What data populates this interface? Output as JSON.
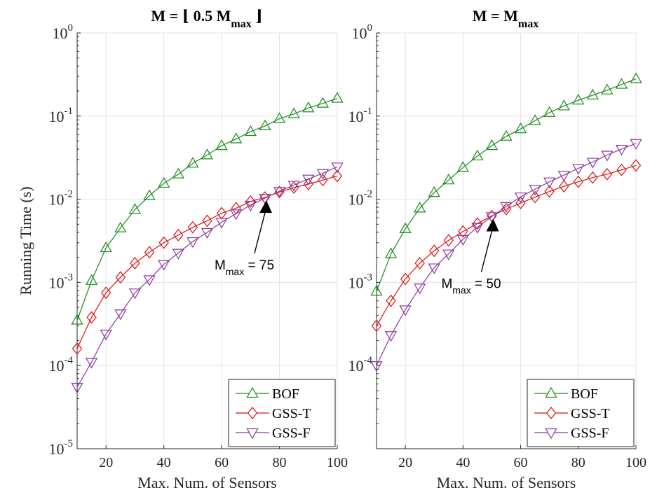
{
  "chart_data": [
    {
      "type": "line",
      "title_main": "M = ⌊ 0.5 M",
      "title_sub": "max",
      "title_end": " ⌋",
      "xlabel": "Max. Num. of Sensors",
      "ylabel": "Running Time (s)",
      "yscale": "log",
      "xlim": [
        10,
        100
      ],
      "ylim": [
        1e-05,
        1
      ],
      "xticks": [
        20,
        40,
        60,
        80,
        100
      ],
      "yticks": [
        {
          "base": "10",
          "exp": "0"
        },
        {
          "base": "10",
          "exp": "-1"
        },
        {
          "base": "10",
          "exp": "-2"
        },
        {
          "base": "10",
          "exp": "-3"
        },
        {
          "base": "10",
          "exp": "-4"
        },
        {
          "base": "10",
          "exp": "-5"
        }
      ],
      "grid": true,
      "legend_position": "bottom-right",
      "x": [
        10,
        15,
        20,
        25,
        30,
        35,
        40,
        45,
        50,
        55,
        60,
        65,
        70,
        75,
        80,
        85,
        90,
        95,
        100
      ],
      "series": [
        {
          "name": "BOF",
          "color": "#1a8a1a",
          "marker": "triangle-up",
          "values": [
            0.00035,
            0.00105,
            0.0026,
            0.0045,
            0.0075,
            0.011,
            0.0155,
            0.02,
            0.027,
            0.034,
            0.044,
            0.053,
            0.065,
            0.076,
            0.093,
            0.106,
            0.125,
            0.142,
            0.163
          ]
        },
        {
          "name": "GSS-T",
          "color": "#e01010",
          "marker": "diamond",
          "values": [
            0.00016,
            0.00038,
            0.00075,
            0.00115,
            0.0017,
            0.0023,
            0.003,
            0.0037,
            0.0046,
            0.0055,
            0.0068,
            0.0078,
            0.0094,
            0.0105,
            0.0122,
            0.0138,
            0.0152,
            0.017,
            0.019
          ]
        },
        {
          "name": "GSS-F",
          "color": "#8a3aa0",
          "marker": "triangle-down",
          "values": [
            5.5e-05,
            0.00011,
            0.00024,
            0.00042,
            0.00075,
            0.00108,
            0.00165,
            0.00225,
            0.0031,
            0.004,
            0.0053,
            0.0067,
            0.0085,
            0.0103,
            0.0125,
            0.0148,
            0.0175,
            0.0205,
            0.0245
          ]
        }
      ],
      "annotation": {
        "label_base": "M",
        "label_sub": "max",
        "label_rest": " = 75",
        "x": 75,
        "y": 0.0105
      }
    },
    {
      "type": "line",
      "title_main": "M = M",
      "title_sub": "max",
      "title_end": "",
      "xlabel": "Max. Num. of Sensors",
      "ylabel": "",
      "yscale": "log",
      "xlim": [
        10,
        100
      ],
      "ylim": [
        1e-05,
        1
      ],
      "xticks": [
        20,
        40,
        60,
        80,
        100
      ],
      "yticks": [
        {
          "base": "10",
          "exp": "0"
        },
        {
          "base": "10",
          "exp": "-1"
        },
        {
          "base": "10",
          "exp": "-2"
        },
        {
          "base": "10",
          "exp": "-3"
        },
        {
          "base": "10",
          "exp": "-4"
        }
      ],
      "grid": true,
      "legend_position": "bottom-right",
      "x": [
        10,
        15,
        20,
        25,
        30,
        35,
        40,
        45,
        50,
        55,
        60,
        65,
        70,
        75,
        80,
        85,
        90,
        95,
        100
      ],
      "series": [
        {
          "name": "BOF",
          "color": "#1a8a1a",
          "marker": "triangle-up",
          "values": [
            0.00078,
            0.0022,
            0.0044,
            0.0078,
            0.012,
            0.017,
            0.024,
            0.033,
            0.044,
            0.057,
            0.07,
            0.088,
            0.11,
            0.132,
            0.155,
            0.178,
            0.205,
            0.24,
            0.28
          ]
        },
        {
          "name": "GSS-T",
          "color": "#e01010",
          "marker": "diamond",
          "values": [
            0.0003,
            0.0006,
            0.0011,
            0.0017,
            0.0024,
            0.0032,
            0.0041,
            0.0051,
            0.0063,
            0.0076,
            0.009,
            0.0106,
            0.0124,
            0.0143,
            0.0162,
            0.0182,
            0.02,
            0.0225,
            0.0255
          ]
        },
        {
          "name": "GSS-F",
          "color": "#8a3aa0",
          "marker": "triangle-down",
          "values": [
            0.0001,
            0.00023,
            0.00047,
            0.00086,
            0.0015,
            0.0022,
            0.0033,
            0.0046,
            0.0062,
            0.0082,
            0.0107,
            0.0132,
            0.0162,
            0.0195,
            0.0235,
            0.028,
            0.034,
            0.04,
            0.047
          ]
        }
      ],
      "annotation": {
        "label_base": "M",
        "label_sub": "max",
        "label_rest": " = 50",
        "x": 50,
        "y": 0.0063
      }
    }
  ]
}
